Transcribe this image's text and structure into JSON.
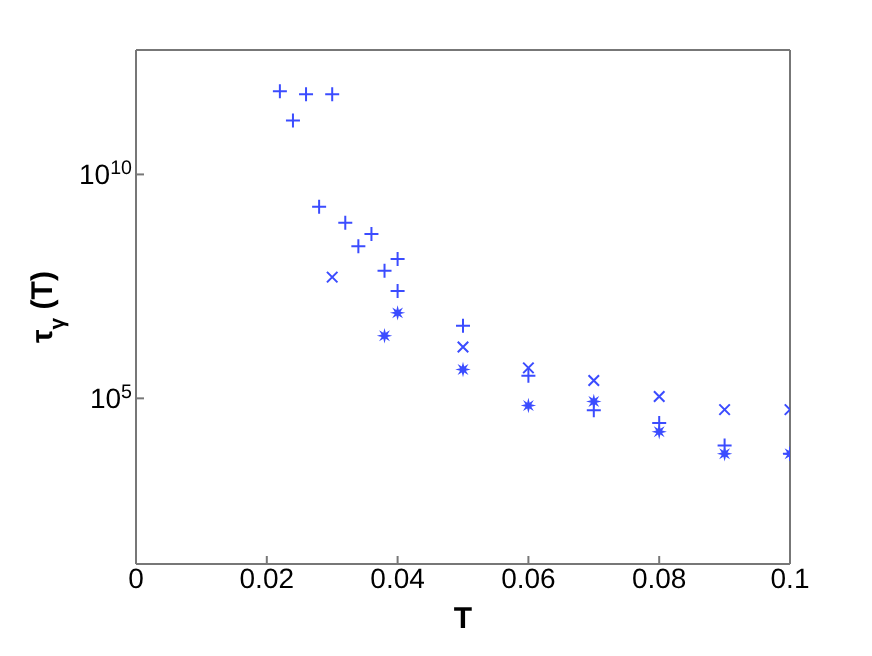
{
  "chart_data": {
    "type": "scatter",
    "xlabel": "T",
    "ylabel": "τ$_{γ}$(T)",
    "xlim": [
      0,
      0.1
    ],
    "xticks": [
      0,
      0.02,
      0.04,
      0.06,
      0.08,
      0.1
    ],
    "ylim": [
      20,
      6000000000000.0
    ],
    "yticks": [
      {
        "value": 100000,
        "label": "10$^{5}$"
      },
      {
        "value": 10000000000,
        "label": "10$^{10}$"
      }
    ],
    "log": "y",
    "legend": false,
    "series": [
      {
        "color": "#3b4cff",
        "marker": "cross",
        "x": [
          0.022,
          0.024,
          0.026,
          0.028,
          0.03,
          0.032,
          0.034,
          0.036,
          0.038,
          0.04,
          0.04,
          0.05,
          0.06,
          0.07,
          0.08,
          0.09,
          0.1
        ],
        "values": [
          720000000000.0,
          160000000000.0,
          620000000000.0,
          1900000000.0,
          620000000000.0,
          830000000.0,
          250000000.0,
          470000000.0,
          71000000.0,
          130000000.0,
          25000000.0,
          4200000.0,
          320000.0,
          54000.0,
          28000.0,
          8900.0,
          5800.0
        ]
      },
      {
        "color": "#3b4cff",
        "marker": "x",
        "x": [
          0.03,
          0.05,
          0.06,
          0.07,
          0.08,
          0.09,
          0.1
        ],
        "values": [
          51000000.0,
          1400000.0,
          480000.0,
          250000.0,
          110000.0,
          56000.0,
          56000.0
        ]
      },
      {
        "color": "#3b4cff",
        "marker": "star",
        "x": [
          0.038,
          0.04,
          0.05,
          0.06,
          0.07,
          0.08,
          0.09,
          0.1
        ],
        "values": [
          2500000.0,
          8100000.0,
          440000.0,
          69000.0,
          85000.0,
          18000.0,
          5800.0,
          5800.0
        ]
      }
    ]
  }
}
